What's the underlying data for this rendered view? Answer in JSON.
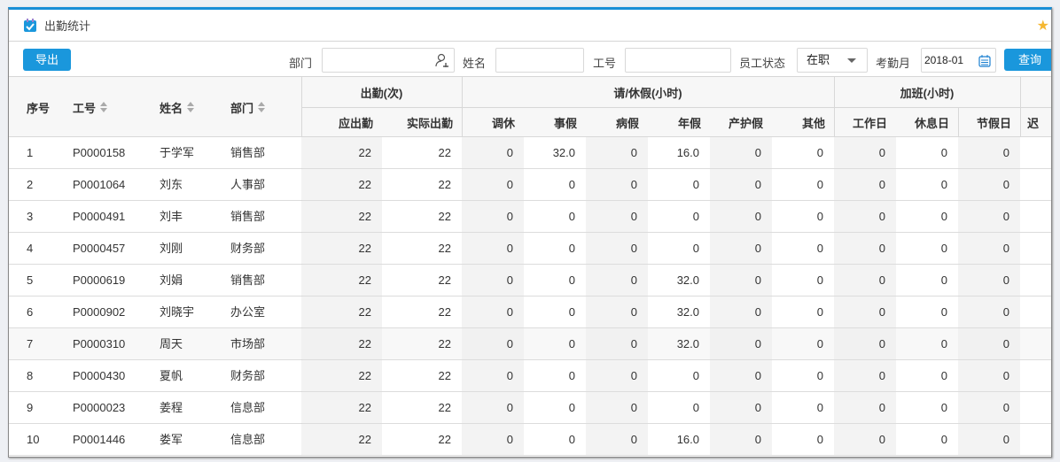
{
  "title": "出勤统计",
  "toolbar": {
    "export": "导出",
    "dept_label": "部门",
    "dept_value": "",
    "name_label": "姓名",
    "name_value": "",
    "id_label": "工号",
    "id_value": "",
    "status_label": "员工状态",
    "status_value": "在职",
    "month_label": "考勤月",
    "month_value": "2018-01",
    "query": "查询"
  },
  "header": {
    "seq": "序号",
    "id": "工号",
    "name": "姓名",
    "dept": "部门",
    "groups": [
      "出勤(次)",
      "请/休假(小时)",
      "加班(小时)"
    ],
    "cols": [
      "应出勤",
      "实际出勤",
      "调休",
      "事假",
      "病假",
      "年假",
      "产护假",
      "其他",
      "工作日",
      "休息日",
      "节假日",
      "迟"
    ]
  },
  "rows": [
    [
      "1",
      "P0000158",
      "于学军",
      "销售部",
      "22",
      "22",
      "0",
      "32.0",
      "0",
      "16.0",
      "0",
      "0",
      "0",
      "0",
      "0"
    ],
    [
      "2",
      "P0001064",
      "刘东",
      "人事部",
      "22",
      "22",
      "0",
      "0",
      "0",
      "0",
      "0",
      "0",
      "0",
      "0",
      "0"
    ],
    [
      "3",
      "P0000491",
      "刘丰",
      "销售部",
      "22",
      "22",
      "0",
      "0",
      "0",
      "0",
      "0",
      "0",
      "0",
      "0",
      "0"
    ],
    [
      "4",
      "P0000457",
      "刘刚",
      "财务部",
      "22",
      "22",
      "0",
      "0",
      "0",
      "0",
      "0",
      "0",
      "0",
      "0",
      "0"
    ],
    [
      "5",
      "P0000619",
      "刘娟",
      "销售部",
      "22",
      "22",
      "0",
      "0",
      "0",
      "32.0",
      "0",
      "0",
      "0",
      "0",
      "0"
    ],
    [
      "6",
      "P0000902",
      "刘晓宇",
      "办公室",
      "22",
      "22",
      "0",
      "0",
      "0",
      "32.0",
      "0",
      "0",
      "0",
      "0",
      "0"
    ],
    [
      "7",
      "P0000310",
      "周天",
      "市场部",
      "22",
      "22",
      "0",
      "0",
      "0",
      "32.0",
      "0",
      "0",
      "0",
      "0",
      "0"
    ],
    [
      "8",
      "P0000430",
      "夏帆",
      "财务部",
      "22",
      "22",
      "0",
      "0",
      "0",
      "0",
      "0",
      "0",
      "0",
      "0",
      "0"
    ],
    [
      "9",
      "P0000023",
      "姜程",
      "信息部",
      "22",
      "22",
      "0",
      "0",
      "0",
      "0",
      "0",
      "0",
      "0",
      "0",
      "0"
    ],
    [
      "10",
      "P0001446",
      "娄军",
      "信息部",
      "22",
      "22",
      "0",
      "0",
      "0",
      "16.0",
      "0",
      "0",
      "0",
      "0",
      "0"
    ]
  ],
  "highlight_row": 7,
  "colors": {
    "accent": "#1a97dc",
    "star": "#f5b731"
  }
}
